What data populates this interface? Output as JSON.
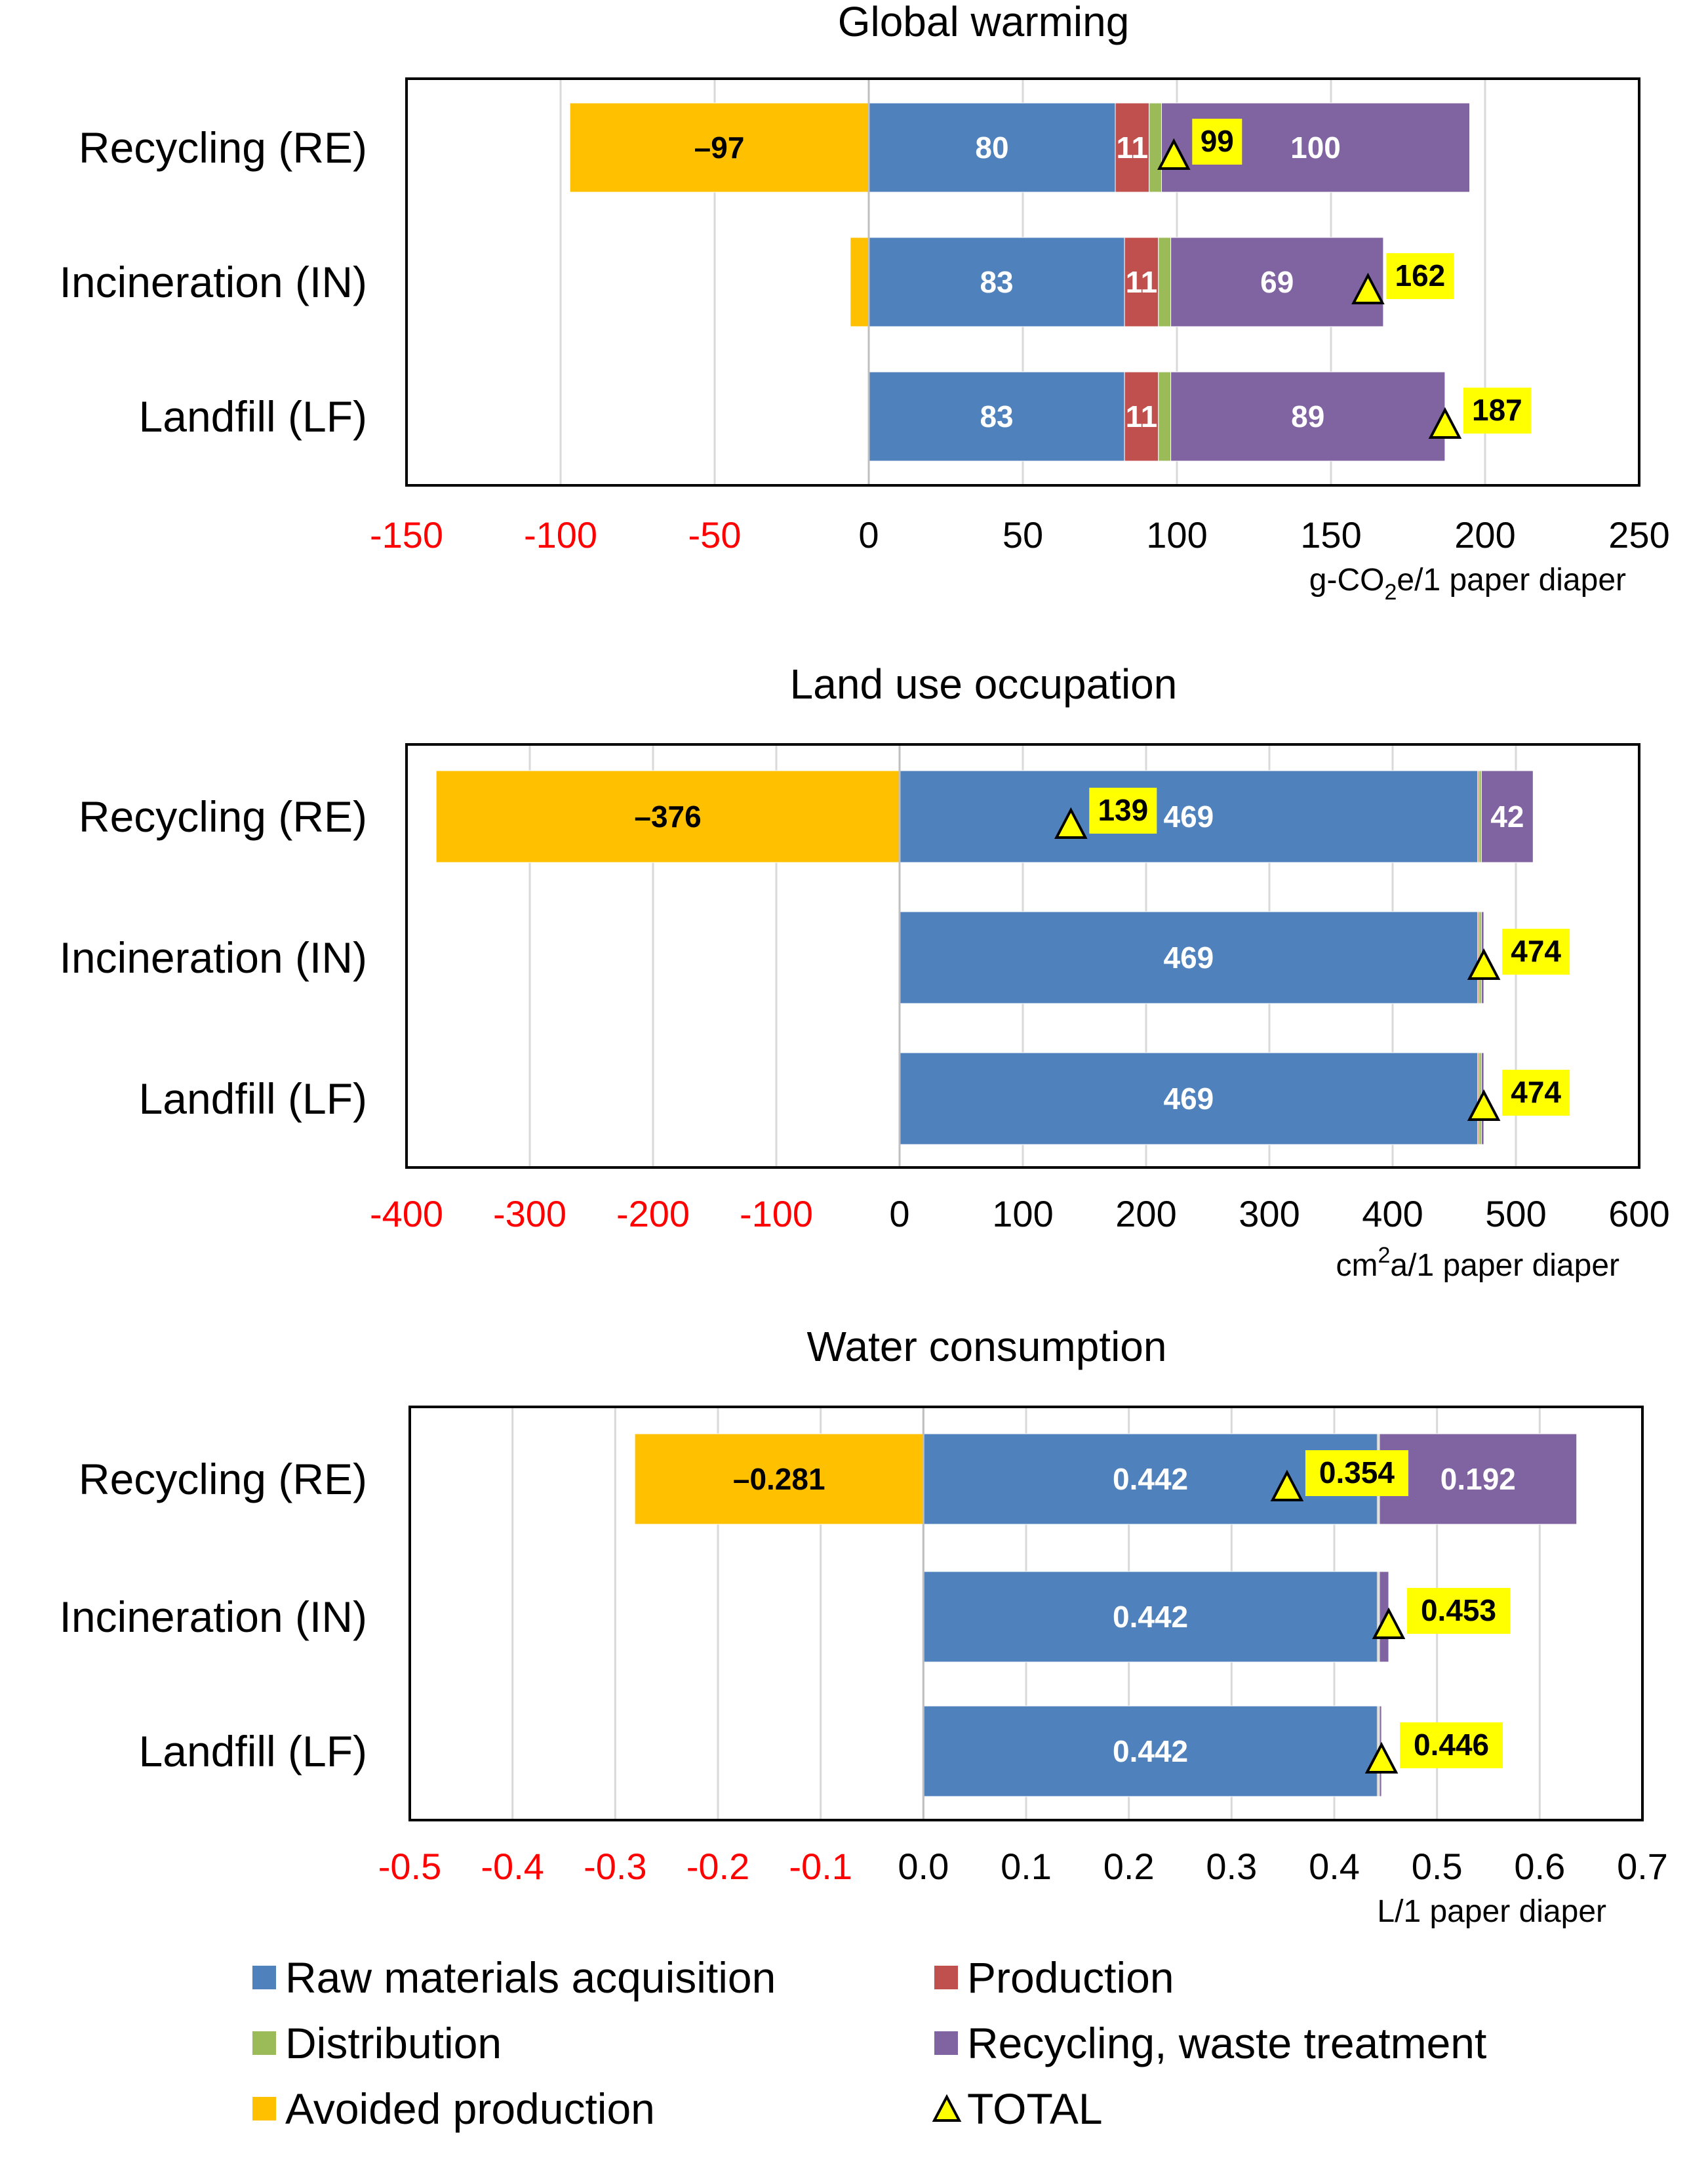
{
  "colors": {
    "raw": "#4F81BD",
    "production": "#C0504D",
    "distribution": "#9BBB59",
    "recycling": "#8064A2",
    "avoided": "#FFC000",
    "total_marker": "#FFFF00",
    "label_bg": "#FFFF00",
    "negative_tick": "#FF0000",
    "positive_tick": "#000000",
    "grid": "#D9D9D9"
  },
  "legend": {
    "items": [
      {
        "key": "raw",
        "label": "Raw materials acquisition",
        "color": "#4F81BD",
        "marker": "square"
      },
      {
        "key": "production",
        "label": "Production",
        "color": "#C0504D",
        "marker": "square"
      },
      {
        "key": "distribution",
        "label": "Distribution",
        "color": "#9BBB59",
        "marker": "square"
      },
      {
        "key": "recycling",
        "label": "Recycling, waste treatment",
        "color": "#8064A2",
        "marker": "square"
      },
      {
        "key": "avoided",
        "label": "Avoided production",
        "color": "#FFC000",
        "marker": "square"
      },
      {
        "key": "total",
        "label": "TOTAL",
        "color": "#FFFF00",
        "marker": "triangle"
      }
    ]
  },
  "chart_data": [
    {
      "type": "bar",
      "orientation": "horizontal",
      "stacked": true,
      "title": "Global warming",
      "unit": "g-CO",
      "unit_sub": "2",
      "unit_rest": "e/1 paper diaper",
      "xlim": [
        -150,
        250
      ],
      "ticks": [
        -150,
        -100,
        -50,
        0,
        50,
        100,
        150,
        200,
        250
      ],
      "tick_labels": [
        "-150",
        "-100",
        "-50",
        "0",
        "50",
        "100",
        "150",
        "200",
        "250"
      ],
      "categories": [
        "Recycling (RE)",
        "Incineration (IN)",
        "Landfill (LF)"
      ],
      "series": [
        {
          "key": "avoided",
          "values": [
            -97,
            -6,
            0
          ],
          "labels": [
            "–97",
            "",
            ""
          ]
        },
        {
          "key": "raw",
          "values": [
            80,
            83,
            83
          ],
          "labels": [
            "80",
            "83",
            "83"
          ]
        },
        {
          "key": "production",
          "values": [
            11,
            11,
            11
          ],
          "labels": [
            "11",
            "11",
            "11"
          ]
        },
        {
          "key": "distribution",
          "values": [
            4,
            4,
            4
          ],
          "labels": [
            "",
            "",
            ""
          ]
        },
        {
          "key": "recycling",
          "values": [
            100,
            69,
            89
          ],
          "labels": [
            "100",
            "69",
            "89"
          ]
        }
      ],
      "totals": [
        99,
        162,
        187
      ],
      "total_labels": [
        "99",
        "162",
        "187"
      ]
    },
    {
      "type": "bar",
      "orientation": "horizontal",
      "stacked": true,
      "title": "Land use occupation",
      "unit": "cm",
      "unit_sup": "2",
      "unit_rest": "a/1 paper diaper",
      "xlim": [
        -400,
        600
      ],
      "ticks": [
        -400,
        -300,
        -200,
        -100,
        0,
        100,
        200,
        300,
        400,
        500,
        600
      ],
      "tick_labels": [
        "-400",
        "-300",
        "-200",
        "-100",
        "0",
        "100",
        "200",
        "300",
        "400",
        "500",
        "600"
      ],
      "categories": [
        "Recycling (RE)",
        "Incineration (IN)",
        "Landfill (LF)"
      ],
      "series": [
        {
          "key": "avoided",
          "values": [
            -376,
            0,
            0
          ],
          "labels": [
            "–376",
            "",
            ""
          ]
        },
        {
          "key": "raw",
          "values": [
            469,
            469,
            469
          ],
          "labels": [
            "469",
            "469",
            "469"
          ]
        },
        {
          "key": "production",
          "values": [
            1,
            1,
            1
          ],
          "labels": [
            "",
            "",
            ""
          ]
        },
        {
          "key": "distribution",
          "values": [
            2,
            2,
            2
          ],
          "labels": [
            "",
            "",
            ""
          ]
        },
        {
          "key": "recycling",
          "values": [
            42,
            2,
            2
          ],
          "labels": [
            "42",
            "",
            ""
          ]
        }
      ],
      "totals": [
        139,
        474,
        474
      ],
      "total_labels": [
        "139",
        "474",
        "474"
      ]
    },
    {
      "type": "bar",
      "orientation": "horizontal",
      "stacked": true,
      "title": "Water consumption",
      "unit": "L/1 paper diaper",
      "xlim": [
        -0.5,
        0.7
      ],
      "ticks": [
        -0.5,
        -0.4,
        -0.3,
        -0.2,
        -0.1,
        0.0,
        0.1,
        0.2,
        0.3,
        0.4,
        0.5,
        0.6,
        0.7
      ],
      "tick_labels": [
        "-0.5",
        "-0.4",
        "-0.3",
        "-0.2",
        "-0.1",
        "0.0",
        "0.1",
        "0.2",
        "0.3",
        "0.4",
        "0.5",
        "0.6",
        "0.7"
      ],
      "categories": [
        "Recycling (RE)",
        "Incineration (IN)",
        "Landfill (LF)"
      ],
      "series": [
        {
          "key": "avoided",
          "values": [
            -0.281,
            0,
            0
          ],
          "labels": [
            "–0.281",
            "",
            ""
          ]
        },
        {
          "key": "raw",
          "values": [
            0.442,
            0.442,
            0.442
          ],
          "labels": [
            "0.442",
            "0.442",
            "0.442"
          ]
        },
        {
          "key": "production",
          "values": [
            0.001,
            0.001,
            0.001
          ],
          "labels": [
            "",
            "",
            ""
          ]
        },
        {
          "key": "distribution",
          "values": [
            0.001,
            0.001,
            0.001
          ],
          "labels": [
            "",
            "",
            ""
          ]
        },
        {
          "key": "recycling",
          "values": [
            0.192,
            0.009,
            0.002
          ],
          "labels": [
            "0.192",
            "",
            ""
          ]
        }
      ],
      "totals": [
        0.354,
        0.453,
        0.446
      ],
      "total_labels": [
        "0.354",
        "0.453",
        "0.446"
      ]
    }
  ]
}
